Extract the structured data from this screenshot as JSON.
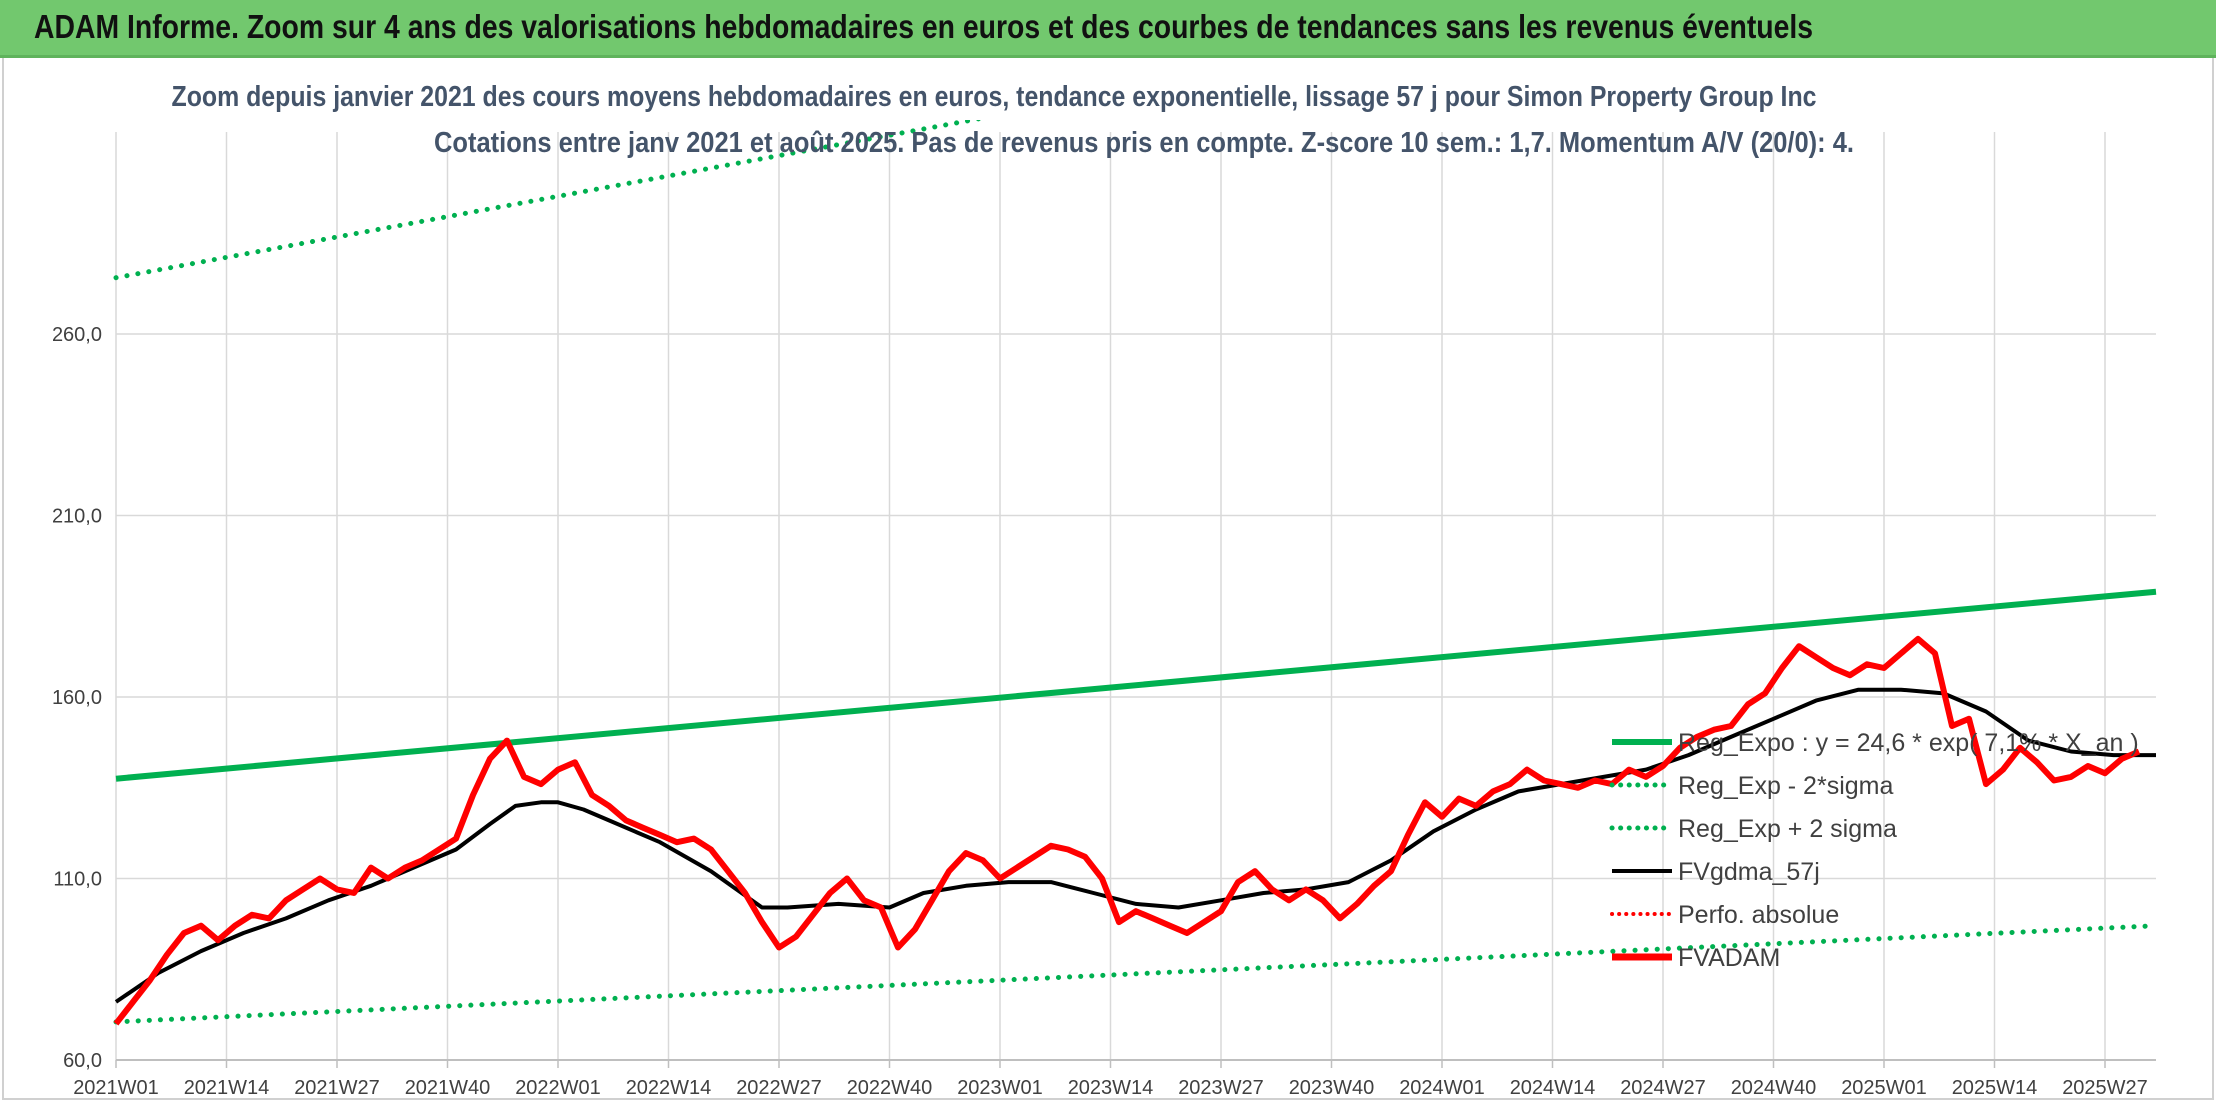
{
  "header": {
    "title": "ADAM Informe. Zoom sur 4 ans des valorisations hebdomadaires en euros et des courbes de tendances sans les revenus éventuels"
  },
  "colors": {
    "header_bg": "#72c86e",
    "trend": "#00b050",
    "price": "#ff0000",
    "smooth": "#000000",
    "perf": "#ff0000"
  },
  "chart_data": {
    "type": "line",
    "title": "Zoom depuis janvier 2021 des cours moyens hebdomadaires en euros, tendance exponentielle, lissage 57 j pour Simon Property Group Inc",
    "subtitle": "Cotations entre janv 2021 et août 2025. Pas de revenus pris en compte. Z-score 10 sem.: 1,7. Momentum A/V (20/0): 4.",
    "ylim": [
      60,
      260
    ],
    "yticks": [
      "60,0",
      "110,0",
      "160,0",
      "210,0",
      "260,0"
    ],
    "yticks_values": [
      60,
      110,
      160,
      210,
      260
    ],
    "x_weeks": 240,
    "xticks": [
      "2021W01",
      "2021W14",
      "2021W27",
      "2021W40",
      "2022W01",
      "2022W14",
      "2022W27",
      "2022W40",
      "2023W01",
      "2023W14",
      "2023W27",
      "2023W40",
      "2024W01",
      "2024W14",
      "2024W27",
      "2024W40",
      "2025W01",
      "2025W14",
      "2025W27"
    ],
    "xticks_index": [
      0,
      13,
      26,
      39,
      52,
      65,
      78,
      91,
      104,
      117,
      130,
      143,
      156,
      169,
      182,
      195,
      208,
      221,
      234
    ],
    "grid": true,
    "legend_position": "right",
    "series": [
      {
        "name": "Reg_Expo : y = 24,6 * exp( 7,1% * X_an )",
        "style": "solid-thick",
        "color": "#00b050",
        "points": [
          [
            0,
            137.5
          ],
          [
            240,
            189
          ]
        ]
      },
      {
        "name": "Reg_Exp - 2*sigma",
        "style": "dotted",
        "color": "#00b050",
        "points": [
          [
            0,
            70.5
          ],
          [
            240,
            97
          ]
        ]
      },
      {
        "name": "Reg_Exp + 2 sigma",
        "style": "dotted",
        "color": "#00b050",
        "points": [
          [
            0,
            275.5
          ],
          [
            240,
            379
          ]
        ]
      },
      {
        "name": "FVgdma_57j",
        "style": "solid",
        "color": "#000000",
        "points": [
          [
            0,
            76
          ],
          [
            5,
            84
          ],
          [
            10,
            90
          ],
          [
            15,
            95
          ],
          [
            20,
            99
          ],
          [
            25,
            104
          ],
          [
            30,
            108
          ],
          [
            35,
            113
          ],
          [
            40,
            118
          ],
          [
            44,
            125
          ],
          [
            47,
            130
          ],
          [
            50,
            131
          ],
          [
            52,
            131
          ],
          [
            55,
            129
          ],
          [
            58,
            126
          ],
          [
            61,
            123
          ],
          [
            64,
            120
          ],
          [
            67,
            116
          ],
          [
            70,
            112
          ],
          [
            73,
            107
          ],
          [
            76,
            102
          ],
          [
            79,
            102
          ],
          [
            85,
            103
          ],
          [
            91,
            102
          ],
          [
            95,
            106
          ],
          [
            100,
            108
          ],
          [
            105,
            109
          ],
          [
            110,
            109
          ],
          [
            115,
            106
          ],
          [
            120,
            103
          ],
          [
            125,
            102
          ],
          [
            130,
            104
          ],
          [
            135,
            106
          ],
          [
            140,
            107
          ],
          [
            145,
            109
          ],
          [
            150,
            115
          ],
          [
            155,
            123
          ],
          [
            160,
            129
          ],
          [
            165,
            134
          ],
          [
            170,
            136
          ],
          [
            175,
            138
          ],
          [
            180,
            140
          ],
          [
            185,
            144
          ],
          [
            190,
            149
          ],
          [
            195,
            154
          ],
          [
            200,
            159
          ],
          [
            205,
            162
          ],
          [
            210,
            162
          ],
          [
            215,
            161
          ],
          [
            220,
            156
          ],
          [
            225,
            148
          ],
          [
            230,
            145
          ],
          [
            235,
            144
          ],
          [
            240,
            144
          ]
        ]
      },
      {
        "name": "Perfo. absolue",
        "style": "dotted",
        "color": "#ff0000",
        "points": []
      },
      {
        "name": "FVADAM",
        "style": "solid-thick",
        "color": "#ff0000",
        "points": [
          [
            0,
            70
          ],
          [
            2,
            76
          ],
          [
            4,
            82
          ],
          [
            6,
            89
          ],
          [
            8,
            95
          ],
          [
            10,
            97
          ],
          [
            12,
            93
          ],
          [
            14,
            97
          ],
          [
            16,
            100
          ],
          [
            18,
            99
          ],
          [
            20,
            104
          ],
          [
            22,
            107
          ],
          [
            24,
            110
          ],
          [
            26,
            107
          ],
          [
            28,
            106
          ],
          [
            30,
            113
          ],
          [
            32,
            110
          ],
          [
            34,
            113
          ],
          [
            36,
            115
          ],
          [
            38,
            118
          ],
          [
            40,
            121
          ],
          [
            42,
            133
          ],
          [
            44,
            143
          ],
          [
            46,
            148
          ],
          [
            48,
            138
          ],
          [
            50,
            136
          ],
          [
            52,
            140
          ],
          [
            54,
            142
          ],
          [
            56,
            133
          ],
          [
            58,
            130
          ],
          [
            60,
            126
          ],
          [
            62,
            124
          ],
          [
            64,
            122
          ],
          [
            66,
            120
          ],
          [
            68,
            121
          ],
          [
            70,
            118
          ],
          [
            72,
            112
          ],
          [
            74,
            106
          ],
          [
            76,
            98
          ],
          [
            78,
            91
          ],
          [
            80,
            94
          ],
          [
            82,
            100
          ],
          [
            84,
            106
          ],
          [
            86,
            110
          ],
          [
            88,
            104
          ],
          [
            90,
            102
          ],
          [
            92,
            91
          ],
          [
            94,
            96
          ],
          [
            96,
            104
          ],
          [
            98,
            112
          ],
          [
            100,
            117
          ],
          [
            102,
            115
          ],
          [
            104,
            110
          ],
          [
            106,
            113
          ],
          [
            108,
            116
          ],
          [
            110,
            119
          ],
          [
            112,
            118
          ],
          [
            114,
            116
          ],
          [
            116,
            110
          ],
          [
            118,
            98
          ],
          [
            120,
            101
          ],
          [
            122,
            99
          ],
          [
            124,
            97
          ],
          [
            126,
            95
          ],
          [
            128,
            98
          ],
          [
            130,
            101
          ],
          [
            132,
            109
          ],
          [
            134,
            112
          ],
          [
            136,
            107
          ],
          [
            138,
            104
          ],
          [
            140,
            107
          ],
          [
            142,
            104
          ],
          [
            144,
            99
          ],
          [
            146,
            103
          ],
          [
            148,
            108
          ],
          [
            150,
            112
          ],
          [
            152,
            122
          ],
          [
            154,
            131
          ],
          [
            156,
            127
          ],
          [
            158,
            132
          ],
          [
            160,
            130
          ],
          [
            162,
            134
          ],
          [
            164,
            136
          ],
          [
            166,
            140
          ],
          [
            168,
            137
          ],
          [
            170,
            136
          ],
          [
            172,
            135
          ],
          [
            174,
            137
          ],
          [
            176,
            136
          ],
          [
            178,
            140
          ],
          [
            180,
            138
          ],
          [
            182,
            141
          ],
          [
            184,
            146
          ],
          [
            186,
            149
          ],
          [
            188,
            151
          ],
          [
            190,
            152
          ],
          [
            192,
            158
          ],
          [
            194,
            161
          ],
          [
            196,
            168
          ],
          [
            198,
            174
          ],
          [
            200,
            171
          ],
          [
            202,
            168
          ],
          [
            204,
            166
          ],
          [
            206,
            169
          ],
          [
            208,
            168
          ],
          [
            210,
            172
          ],
          [
            212,
            176
          ],
          [
            214,
            172
          ],
          [
            216,
            152
          ],
          [
            218,
            154
          ],
          [
            220,
            136
          ],
          [
            222,
            140
          ],
          [
            224,
            146
          ],
          [
            226,
            142
          ],
          [
            228,
            137
          ],
          [
            230,
            138
          ],
          [
            232,
            141
          ],
          [
            234,
            139
          ],
          [
            236,
            143
          ],
          [
            238,
            145
          ]
        ]
      }
    ]
  }
}
